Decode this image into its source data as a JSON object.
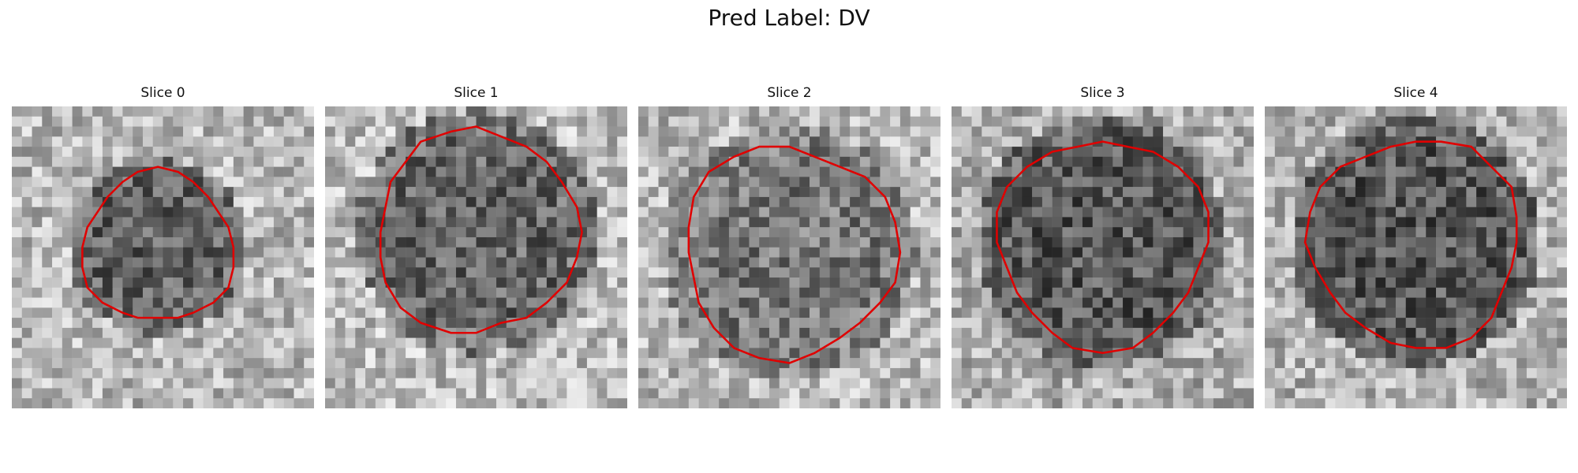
{
  "figure": {
    "title": "Pred Label: DV",
    "contour_color": "#e00000"
  },
  "panels": [
    {
      "title": "Slice 0"
    },
    {
      "title": "Slice 1"
    },
    {
      "title": "Slice 2"
    },
    {
      "title": "Slice 3"
    },
    {
      "title": "Slice 4"
    }
  ]
}
